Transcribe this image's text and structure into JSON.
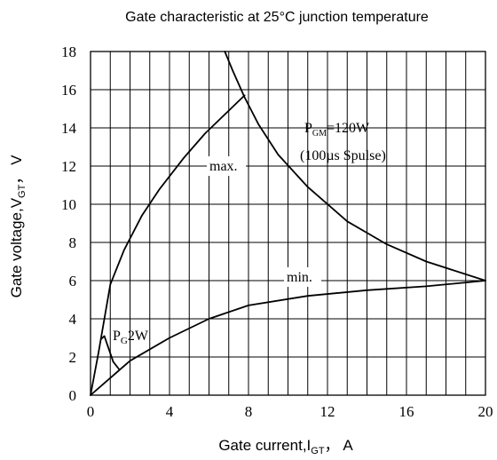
{
  "chart_data": {
    "type": "line",
    "title": "Gate characteristic at 25°C junction temperature",
    "xlabel": {
      "main": "Gate current,I",
      "sub": "GT",
      "tail": "， A"
    },
    "ylabel": {
      "main": "Gate voltage,V",
      "sub": "GT",
      "tail": "， V"
    },
    "xlim": [
      0,
      20
    ],
    "ylim": [
      0,
      18
    ],
    "xticks": [
      "0",
      "4",
      "8",
      "12",
      "16",
      "20"
    ],
    "yticks": [
      "0",
      "2",
      "4",
      "6",
      "8",
      "10",
      "12",
      "14",
      "16",
      "18"
    ],
    "grid": true,
    "series": [
      {
        "key": "max",
        "name": "max.",
        "x": [
          0,
          0.4,
          1.0,
          1.7,
          2.6,
          3.5,
          4.7,
          5.8,
          6.8,
          7.8
        ],
        "y": [
          0,
          2.2,
          5.8,
          7.6,
          9.4,
          10.8,
          12.4,
          13.7,
          14.7,
          15.7
        ]
      },
      {
        "key": "min",
        "name": "min.",
        "x": [
          0,
          1.0,
          2.0,
          4.0,
          6.0,
          8.0,
          11.0,
          14.0,
          17.0,
          20.0
        ],
        "y": [
          0,
          0.9,
          1.8,
          3.0,
          4.0,
          4.7,
          5.2,
          5.5,
          5.7,
          6.0
        ]
      },
      {
        "key": "pgm",
        "name": "",
        "x": [
          6.8,
          7.2,
          7.8,
          8.5,
          9.5,
          11.0,
          13.0,
          15.0,
          17.0,
          20.0
        ],
        "y": [
          18.0,
          17.0,
          15.6,
          14.2,
          12.6,
          10.9,
          9.1,
          7.9,
          7.0,
          6.0
        ]
      },
      {
        "key": "pg",
        "name": "",
        "x": [
          0.55,
          0.7,
          0.9,
          1.15,
          1.45
        ],
        "y": [
          2.95,
          3.1,
          2.5,
          1.75,
          1.35
        ]
      }
    ],
    "annotations": {
      "max_label": "max.",
      "min_label": "min.",
      "pgm_line1": {
        "main": "P",
        "sub": "GM",
        "tail": "=120W"
      },
      "pgm_line2": "(100µs Spulse)",
      "pg_label": {
        "main": "P",
        "sub": "G",
        "tail": "2W"
      }
    }
  }
}
